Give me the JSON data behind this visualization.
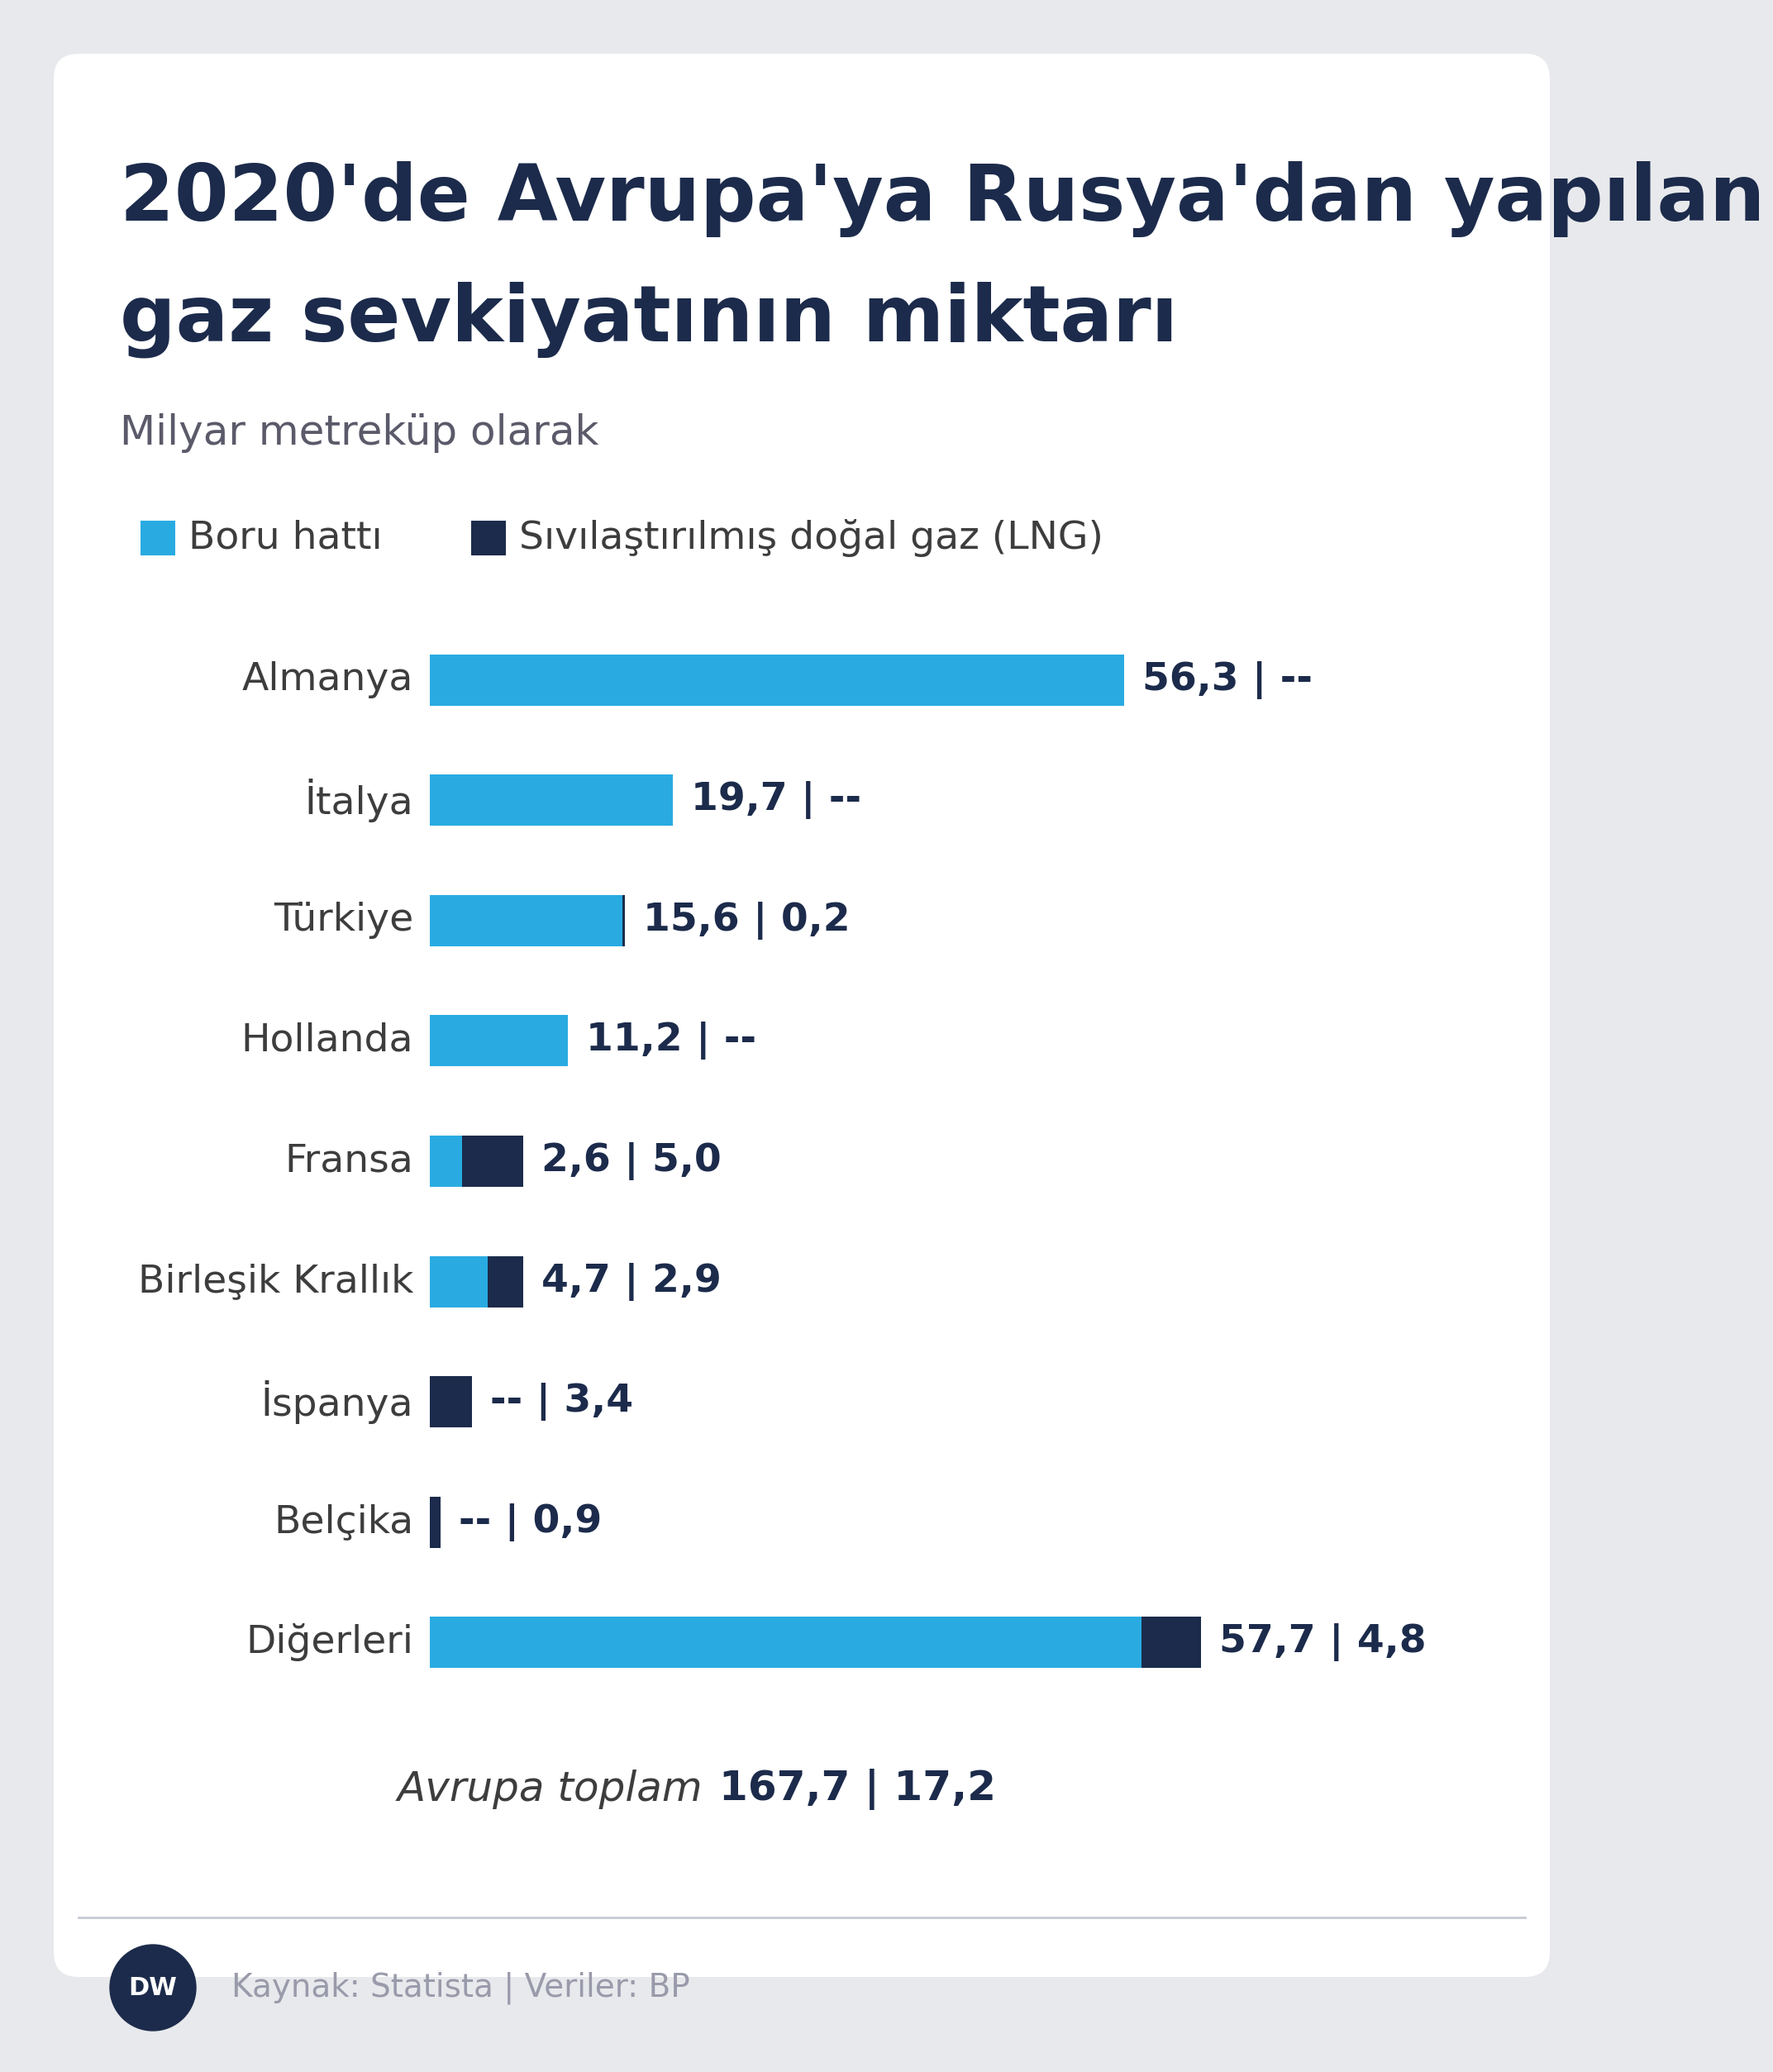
{
  "title_line1": "2020'de Avrupa'ya Rusya'dan yapılan",
  "title_line2": "gaz sevkiyatının miktarı",
  "subtitle": "Milyar metreküp olarak",
  "legend_pipeline": "Boru hattı",
  "legend_lng": "Sıvılaştırılmış doğal gaz (LNG)",
  "color_pipeline": "#29ABE2",
  "color_lng": "#1C2B4B",
  "color_bg": "#E8E9EC",
  "color_white": "#FFFFFF",
  "color_title": "#1C2B4B",
  "color_label": "#3D3D3D",
  "color_value": "#1C2B4B",
  "color_subtitle": "#5A5A6A",
  "color_source": "#999AAA",
  "color_divider": "#C8CAD4",
  "categories": [
    "Almanya",
    "İtalya",
    "Türkiye",
    "Hollanda",
    "Fransa",
    "Birleşik Krallık",
    "İspanya",
    "Belçika",
    "Diğerleri"
  ],
  "pipeline_values": [
    56.3,
    19.7,
    15.6,
    11.2,
    2.6,
    4.7,
    0.0,
    0.0,
    57.7
  ],
  "lng_values": [
    0.0,
    0.0,
    0.2,
    0.0,
    5.0,
    2.9,
    3.4,
    0.9,
    4.8
  ],
  "pipeline_labels": [
    "56,3",
    "19,7",
    "15,6",
    "11,2",
    "2,6",
    "4,7",
    "--",
    "--",
    "57,7"
  ],
  "lng_labels": [
    "--",
    "--",
    "0,2",
    "--",
    "5,0",
    "2,9",
    "3,4",
    "0,9",
    "4,8"
  ],
  "total_text_italic": "Avrupa toplam",
  "total_pipeline": "167,7",
  "total_lng": "17,2",
  "source_text": "Kaynak: Statista | Veriler: BP",
  "xmax": 65,
  "ispanya_pipeline_stub": 0.5,
  "belcika_pipeline_stub": 0.15
}
